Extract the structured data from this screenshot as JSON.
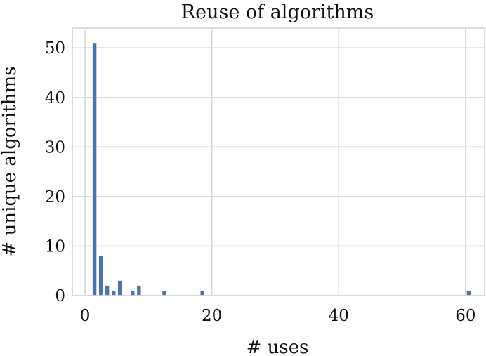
{
  "chart_data": {
    "type": "bar",
    "title": "Reuse of algorithms",
    "xlabel": "# uses",
    "ylabel": "# unique algorithms",
    "xlim": [
      -2,
      63
    ],
    "ylim": [
      0,
      54
    ],
    "xticks": [
      0,
      20,
      40,
      60
    ],
    "yticks": [
      0,
      10,
      20,
      30,
      40,
      50
    ],
    "grid": true,
    "color": "#4c72b0",
    "bar_width": 0.6,
    "x": [
      1.5,
      2.5,
      3.5,
      4.5,
      5.5,
      7.5,
      8.5,
      12.5,
      18.5,
      60.5
    ],
    "values": [
      51,
      8,
      2,
      1,
      3,
      1,
      2,
      1,
      1,
      1
    ]
  }
}
